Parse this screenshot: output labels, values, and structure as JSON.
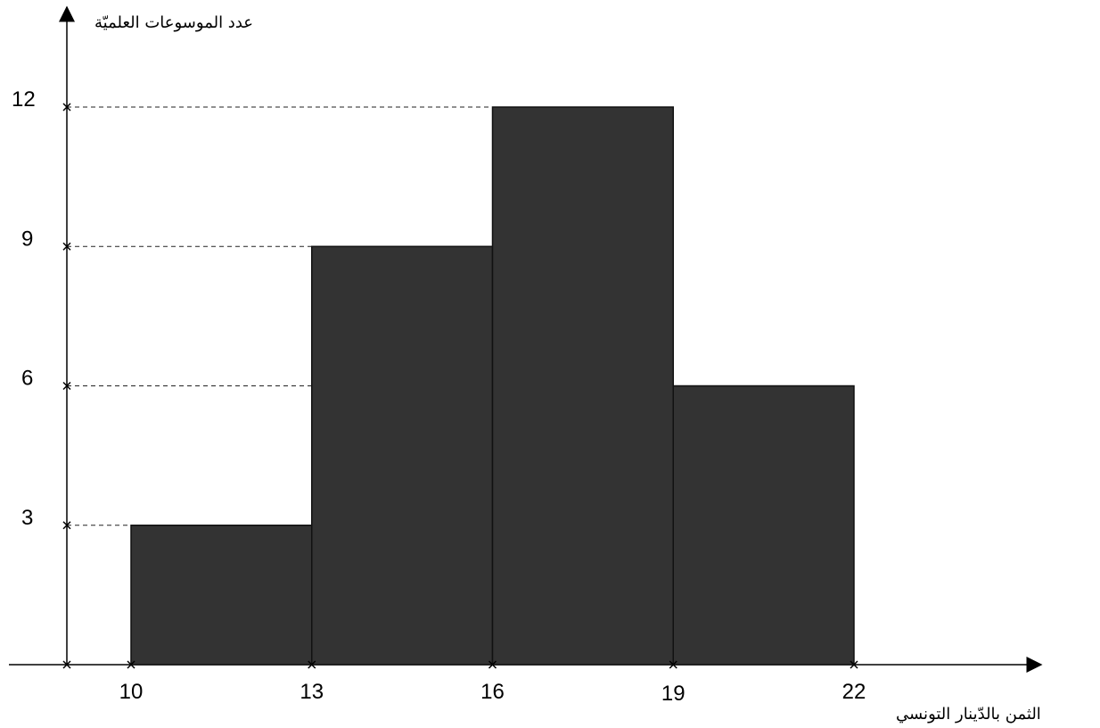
{
  "chart_data": {
    "type": "bar",
    "bins": [
      {
        "start": 10,
        "end": 13,
        "value": 3
      },
      {
        "start": 13,
        "end": 16,
        "value": 9
      },
      {
        "start": 16,
        "end": 19,
        "value": 12
      },
      {
        "start": 19,
        "end": 22,
        "value": 6
      }
    ],
    "x_ticks": [
      10,
      13,
      16,
      19,
      22
    ],
    "y_ticks": [
      3,
      6,
      9,
      12
    ],
    "xlabel": "الثمن بالدّينار التونسي",
    "ylabel": "عدد الموسوعات العلميّة",
    "xlim": [
      10,
      22
    ],
    "ylim": [
      0,
      12
    ],
    "grid": false,
    "dashed_reference_lines": true,
    "colors": {
      "bar_fill": "#333333",
      "axis": "#000000"
    }
  }
}
